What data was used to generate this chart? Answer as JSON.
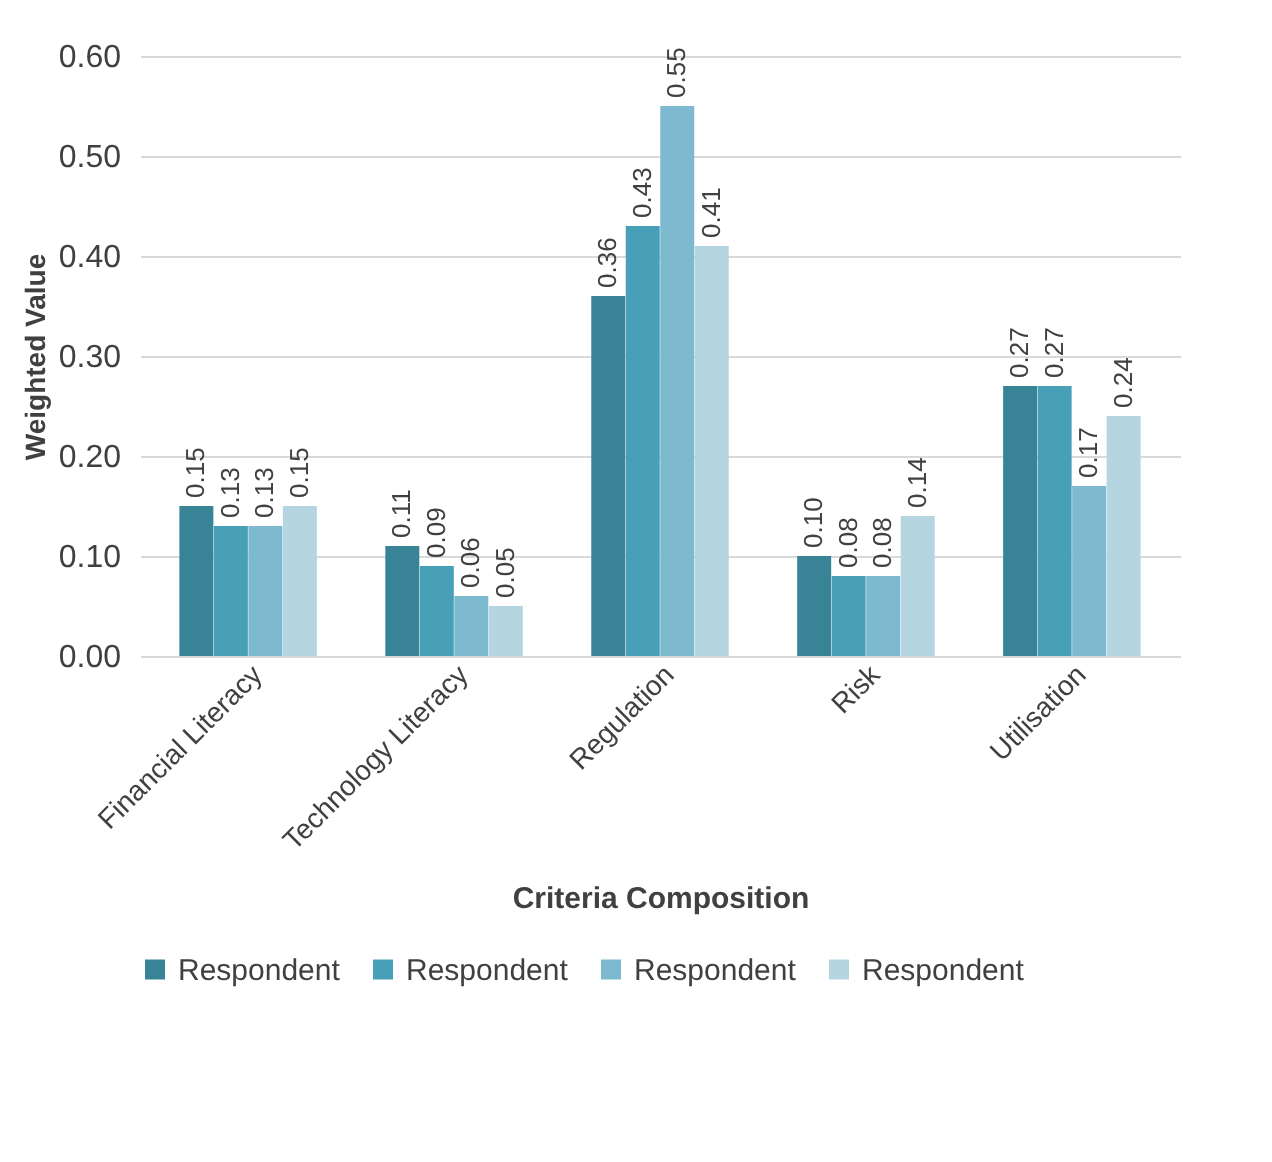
{
  "chart_data": {
    "type": "bar",
    "xlabel": "Criteria Composition",
    "ylabel": "Weighted Value",
    "categories": [
      "Financial Literacy",
      "Technology Literacy",
      "Regulation",
      "Risk",
      "Utilisation"
    ],
    "series": [
      {
        "name": "Respondent",
        "color": "#388496",
        "values": [
          0.15,
          0.11,
          0.36,
          0.1,
          0.27
        ],
        "value_labels": [
          "0.15",
          "0.11",
          "0.36",
          "0.10",
          "0.27"
        ]
      },
      {
        "name": "Respondent",
        "color": "#48a0b8",
        "values": [
          0.13,
          0.09,
          0.43,
          0.08,
          0.27
        ],
        "value_labels": [
          "0.13",
          "0.09",
          "0.43",
          "0.08",
          "0.27"
        ]
      },
      {
        "name": "Respondent",
        "color": "#7dbad0",
        "values": [
          0.13,
          0.06,
          0.55,
          0.08,
          0.17
        ],
        "value_labels": [
          "0.13",
          "0.06",
          "0.55",
          "0.08",
          "0.17"
        ]
      },
      {
        "name": "Respondent",
        "color": "#b5d5e0",
        "values": [
          0.15,
          0.05,
          0.41,
          0.14,
          0.24
        ],
        "value_labels": [
          "0.15",
          "0.05",
          "0.41",
          "0.14",
          "0.24"
        ]
      }
    ],
    "ylim": [
      0,
      0.6
    ],
    "yticks": [
      {
        "value": 0,
        "label": "0.00"
      },
      {
        "value": 0.1,
        "label": "0.10"
      },
      {
        "value": 0.2,
        "label": "0.20"
      },
      {
        "value": 0.3,
        "label": "0.30"
      },
      {
        "value": 0.4,
        "label": "0.40"
      },
      {
        "value": 0.5,
        "label": "0.50"
      },
      {
        "value": 0.6,
        "label": "0.60"
      }
    ],
    "grid": "y",
    "legend": "bottom"
  }
}
